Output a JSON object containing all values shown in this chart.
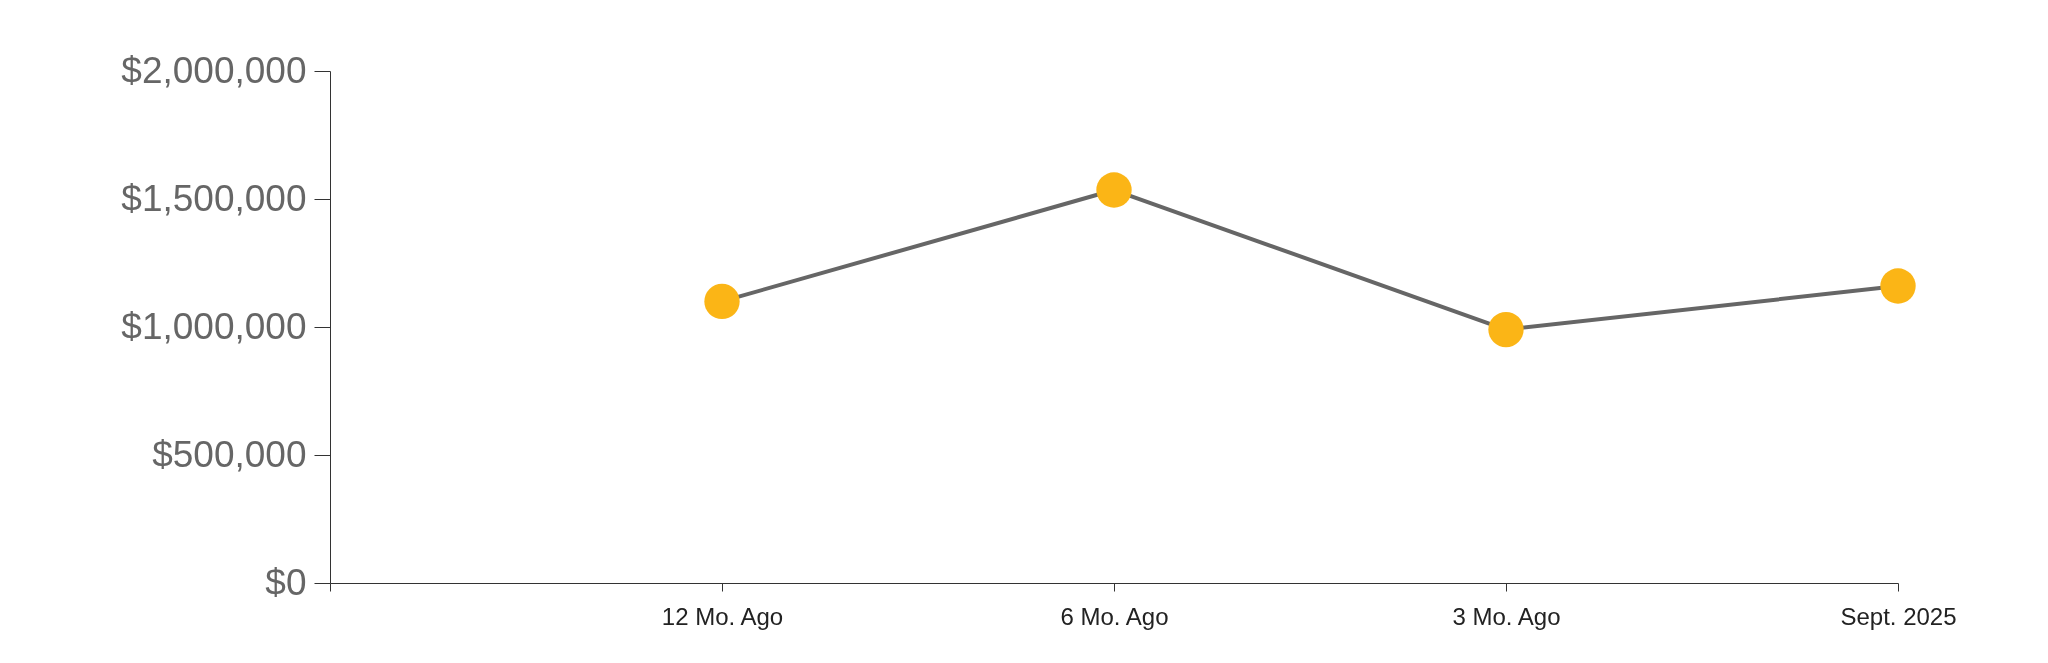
{
  "chart_data": {
    "type": "line",
    "categories": [
      null,
      "12 Mo. Ago",
      "6 Mo. Ago",
      "3 Mo. Ago",
      "Sept. 2025"
    ],
    "series": [
      {
        "color": "#666666",
        "colors": [
          "#fbb516",
          "#fbb516",
          "#fbb516",
          "#fbb516",
          "#fbb516"
        ],
        "values": [
          null,
          1100000,
          1535000,
          990000,
          1160000
        ]
      }
    ],
    "ylim": [
      0,
      2000000
    ],
    "yticks": [
      {
        "value": 0,
        "label": "$0"
      },
      {
        "value": 500000,
        "label": "$500,000"
      },
      {
        "value": 1000000,
        "label": "$1,000,000"
      },
      {
        "value": 1500000,
        "label": "$1,500,000"
      },
      {
        "value": 2000000,
        "label": "$2,000,000"
      }
    ],
    "marker": "circle"
  }
}
